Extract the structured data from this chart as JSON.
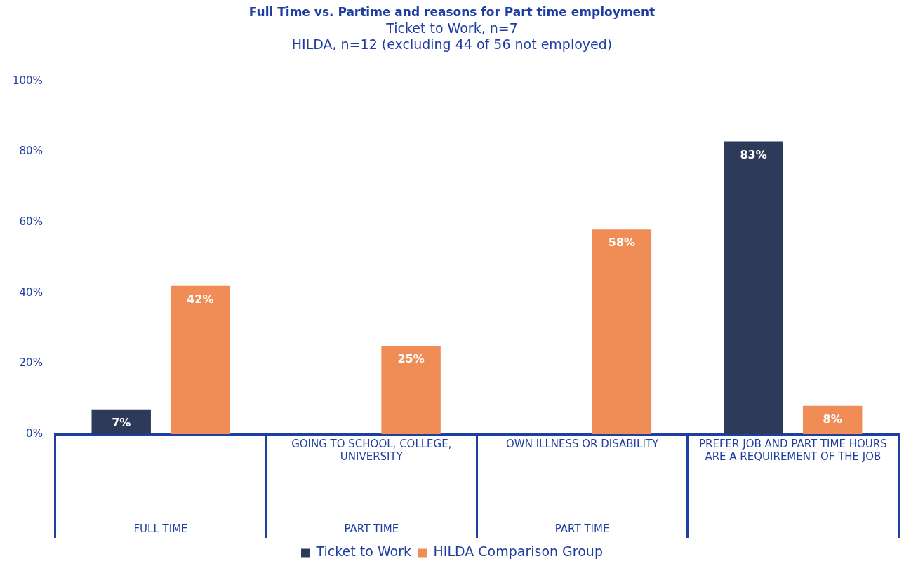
{
  "chart_data": {
    "type": "bar",
    "title": "Full Time vs. Partime and reasons for Part time employment",
    "subtitle": "Ticket to Work, n=7\nHILDA, n=12 (excluding 44 of 56 not employed)",
    "categories": [
      null,
      "GOING TO SCHOOL, COLLEGE, UNIVERSITY",
      "OWN ILLNESS OR DISABILITY",
      "PREFER JOB AND PART TIME HOURS ARE A REQUIREMENT OF THE JOB"
    ],
    "series": [
      {
        "name": "Ticket to Work",
        "color": "#2e3a59",
        "values": [
          7,
          null,
          null,
          83
        ],
        "value_labels": [
          "7%",
          null,
          null,
          "83%"
        ]
      },
      {
        "name": "HILDA Comparison Group",
        "color": "#f08c55",
        "values": [
          42,
          25,
          58,
          8
        ],
        "value_labels": [
          "42%",
          "25%",
          "58%",
          "8%"
        ]
      }
    ],
    "annotations": [
      "FULL TIME",
      "PART TIME",
      "PART TIME"
    ],
    "ylim": [
      0,
      100
    ],
    "yticks": [
      {
        "value": 0,
        "label": "0%"
      },
      {
        "value": 20,
        "label": "20%"
      },
      {
        "value": 40,
        "label": "40%"
      },
      {
        "value": 60,
        "label": "60%"
      },
      {
        "value": 80,
        "label": "80%"
      },
      {
        "value": 100,
        "label": "100%"
      }
    ],
    "grid": false,
    "legend": "bottom"
  }
}
